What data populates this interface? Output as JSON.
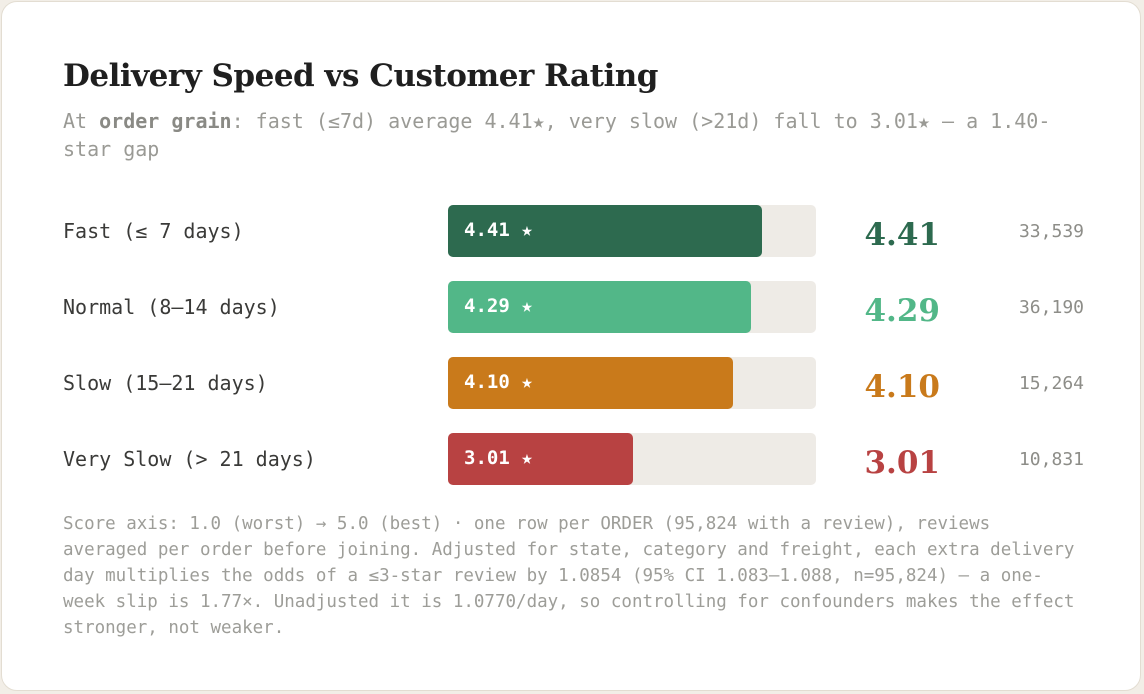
{
  "title": "Delivery Speed vs Customer Rating",
  "subtitle": {
    "prefix": "At ",
    "emphasis": "order grain",
    "suffix": ": fast (≤7d) average 4.41★, very slow (>21d) fall to 3.01★ — a 1.40-star gap"
  },
  "footnote": "Score axis: 1.0 (worst) → 5.0 (best) · one row per ORDER (95,824 with a review), reviews averaged per order before joining. Adjusted for state, category and freight, each extra delivery day multiplies the odds of a ≤3-star review by 1.0854 (95% CI 1.083–1.088, n=95,824) — a one-week slip is 1.77×. Unadjusted it is 1.0770/day, so controlling for confounders makes the effect stronger, not weaker.",
  "chart_data": {
    "type": "bar",
    "orientation": "horizontal",
    "xlim": [
      1.0,
      5.0
    ],
    "categories": [
      "Fast (≤ 7 days)",
      "Normal (8–14 days)",
      "Slow (15–21 days)",
      "Very Slow (> 21 days)"
    ],
    "values": [
      4.41,
      4.29,
      4.1,
      3.01
    ],
    "bar_labels": [
      "4.41 ★",
      "4.29 ★",
      "4.10 ★",
      "3.01 ★"
    ],
    "score_labels": [
      "4.41",
      "4.29",
      "4.10",
      "3.01"
    ],
    "counts": [
      "33,539",
      "36,190",
      "15,264",
      "10,831"
    ],
    "colors": [
      "#2d6a4f",
      "#52b788",
      "#c97a1b",
      "#b84242"
    ],
    "track_color": "#eeebe6"
  }
}
